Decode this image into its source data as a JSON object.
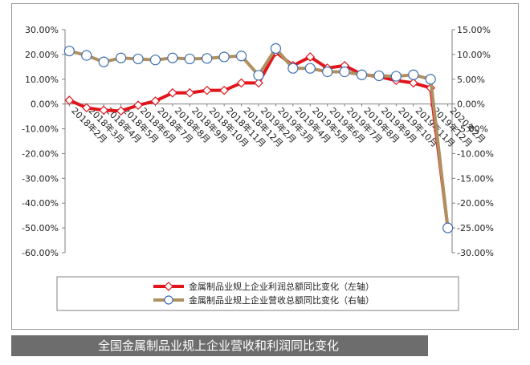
{
  "caption": "全国金属制品业规上企业营收和利润同比变化",
  "chart_data": {
    "type": "line",
    "categories": [
      "2018年2月",
      "2018年3月",
      "2018年4月",
      "2018年5月",
      "2018年6月",
      "2018年7月",
      "2018年8月",
      "2018年9月",
      "2018年10月",
      "2018年11月",
      "2018年12月",
      "2019年2月",
      "2019年3月",
      "2019年4月",
      "2019年5月",
      "2019年6月",
      "2019年7月",
      "2019年8月",
      "2019年9月",
      "2019年10月",
      "2019年11月",
      "2019年12月",
      "2020年2月"
    ],
    "left_axis": {
      "ticks": [
        "30.00%",
        "20.00%",
        "10.00%",
        "0.00%",
        "-10.00%",
        "-20.00%",
        "-30.00%",
        "-40.00%",
        "-50.00%",
        "-60.00%"
      ],
      "ylim": [
        -60,
        30
      ]
    },
    "right_axis": {
      "ticks": [
        "15.00%",
        "10.00%",
        "5.00%",
        "0.00%",
        "-5.00%",
        "-10.00%",
        "-15.00%",
        "-20.00%",
        "-25.00%",
        "-30.00%"
      ],
      "ylim": [
        -30,
        15
      ]
    },
    "series": [
      {
        "name": "金属制品业规上企业利润总额同比变化（左轴）",
        "axis": "left",
        "color": "#e0161c",
        "marker": "diamond",
        "values": [
          1.5,
          -1.5,
          -2.5,
          -2.8,
          -0.5,
          1.2,
          4.5,
          4.5,
          5.5,
          5.5,
          8.5,
          8.5,
          21,
          15.5,
          19,
          14.5,
          15.5,
          12,
          11,
          9.5,
          8.5,
          6.5,
          -50
        ]
      },
      {
        "name": "金属制品业规上企业营收总额同比变化（右轴）",
        "axis": "right",
        "color": "#b09060",
        "marker": "circle",
        "values": [
          10.7,
          9.8,
          8.5,
          9.3,
          9.1,
          8.9,
          9.3,
          9.1,
          9.2,
          9.5,
          9.7,
          5.8,
          11.2,
          7.2,
          7.2,
          6.5,
          6.5,
          5.9,
          5.7,
          5.6,
          5.9,
          5.0,
          -25.0
        ]
      }
    ],
    "grid": false,
    "legend_position": "bottom"
  }
}
